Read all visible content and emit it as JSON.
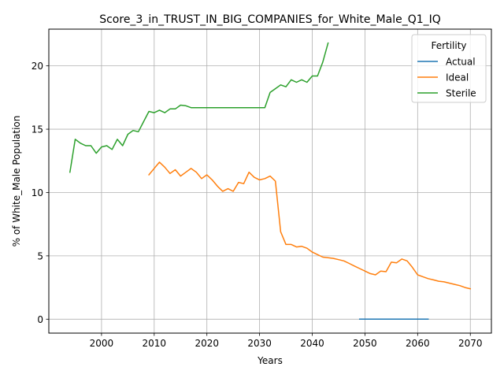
{
  "chart_data": {
    "type": "line",
    "title": "Score_3_in_TRUST_IN_BIG_COMPANIES_for_White_Male_Q1_IQ",
    "xlabel": "Years",
    "ylabel": "% of White_Male Population",
    "xlim": [
      1990,
      2074
    ],
    "ylim": [
      -1.1,
      22.9
    ],
    "xticks": [
      2000,
      2010,
      2020,
      2030,
      2040,
      2050,
      2060,
      2070
    ],
    "yticks": [
      0,
      5,
      10,
      15,
      20
    ],
    "grid": true,
    "legend": {
      "title": "Fertility",
      "position": "top-right"
    },
    "series": [
      {
        "name": "Actual",
        "color": "#1f77b4",
        "x": [
          2049,
          2050,
          2052,
          2054,
          2056,
          2058,
          2060,
          2062
        ],
        "y": [
          0,
          0,
          0,
          0,
          0,
          0,
          0,
          0
        ]
      },
      {
        "name": "Ideal",
        "color": "#ff7f0e",
        "x": [
          2009,
          2010,
          2011,
          2012,
          2013,
          2014,
          2015,
          2016,
          2017,
          2018,
          2019,
          2020,
          2021,
          2022,
          2023,
          2024,
          2025,
          2026,
          2027,
          2028,
          2029,
          2030,
          2031,
          2032,
          2033,
          2034,
          2035,
          2036,
          2037,
          2038,
          2039,
          2040,
          2041,
          2042,
          2043,
          2044,
          2045,
          2046,
          2047,
          2048,
          2049,
          2050,
          2051,
          2052,
          2053,
          2054,
          2055,
          2056,
          2057,
          2058,
          2059,
          2060,
          2061,
          2062,
          2063,
          2064,
          2065,
          2066,
          2067,
          2068,
          2069,
          2070
        ],
        "y": [
          11.4,
          11.9,
          12.4,
          12.0,
          11.5,
          11.8,
          11.3,
          11.6,
          11.9,
          11.6,
          11.1,
          11.4,
          11.0,
          10.5,
          10.1,
          10.3,
          10.1,
          10.8,
          10.7,
          11.6,
          11.2,
          11.0,
          11.1,
          11.3,
          10.9,
          6.9,
          5.9,
          5.9,
          5.7,
          5.75,
          5.6,
          5.3,
          5.1,
          4.9,
          4.85,
          4.8,
          4.7,
          4.6,
          4.4,
          4.2,
          4.0,
          3.8,
          3.6,
          3.5,
          3.8,
          3.75,
          4.5,
          4.45,
          4.75,
          4.6,
          4.1,
          3.5,
          3.35,
          3.2,
          3.1,
          3.0,
          2.95,
          2.85,
          2.75,
          2.65,
          2.5,
          2.4
        ]
      },
      {
        "name": "Sterile",
        "color": "#2ca02c",
        "x": [
          1994,
          1995,
          1996,
          1997,
          1998,
          1999,
          2000,
          2001,
          2002,
          2003,
          2004,
          2005,
          2006,
          2007,
          2008,
          2009,
          2010,
          2011,
          2012,
          2013,
          2014,
          2015,
          2016,
          2017,
          2018,
          2019,
          2020,
          2021,
          2022,
          2023,
          2024,
          2025,
          2026,
          2027,
          2028,
          2029,
          2030,
          2031,
          2032,
          2033,
          2034,
          2035,
          2036,
          2037,
          2038,
          2039,
          2040,
          2041,
          2042,
          2043
        ],
        "y": [
          11.6,
          14.2,
          13.9,
          13.7,
          13.7,
          13.1,
          13.6,
          13.7,
          13.4,
          14.2,
          13.7,
          14.6,
          14.9,
          14.8,
          15.6,
          16.4,
          16.3,
          16.5,
          16.3,
          16.6,
          16.6,
          16.9,
          16.85,
          16.7,
          16.7,
          16.7,
          16.7,
          16.7,
          16.7,
          16.7,
          16.7,
          16.7,
          16.7,
          16.7,
          16.7,
          16.7,
          16.7,
          16.7,
          17.9,
          18.2,
          18.5,
          18.35,
          18.9,
          18.7,
          18.9,
          18.7,
          19.2,
          19.2,
          20.3,
          21.8
        ]
      }
    ]
  }
}
